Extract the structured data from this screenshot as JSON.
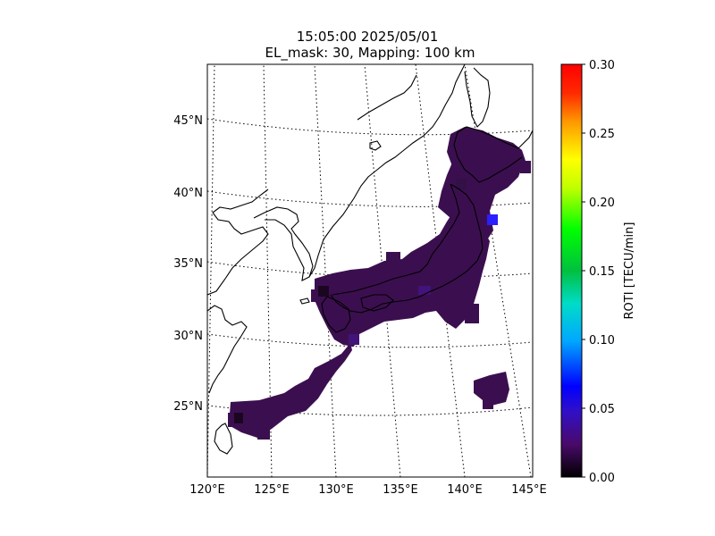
{
  "title": {
    "line1": "15:05:00 2025/05/01",
    "line2": "EL_mask: 30, Mapping: 100 km"
  },
  "map": {
    "lon_ticks": [
      "120°E",
      "125°E",
      "130°E",
      "135°E",
      "140°E",
      "145°E"
    ],
    "lat_ticks": [
      "25°N",
      "30°N",
      "35°N",
      "40°N",
      "45°N"
    ],
    "lon_range": [
      120,
      145
    ],
    "lat_range": [
      20,
      49
    ],
    "grid": "dotted",
    "coastlines": true
  },
  "colorbar": {
    "label": "ROTI [TECU/min]",
    "ticks": [
      "0.00",
      "0.05",
      "0.10",
      "0.15",
      "0.20",
      "0.25",
      "0.30"
    ],
    "range": [
      0.0,
      0.3
    ],
    "colormap": "nipy-spectral-like",
    "placement": "right"
  },
  "colors": {
    "background": "#ffffff",
    "roti_low": "#3b0f4f",
    "roti_high_cell": "#2a1fff",
    "coast": "#000000"
  }
}
